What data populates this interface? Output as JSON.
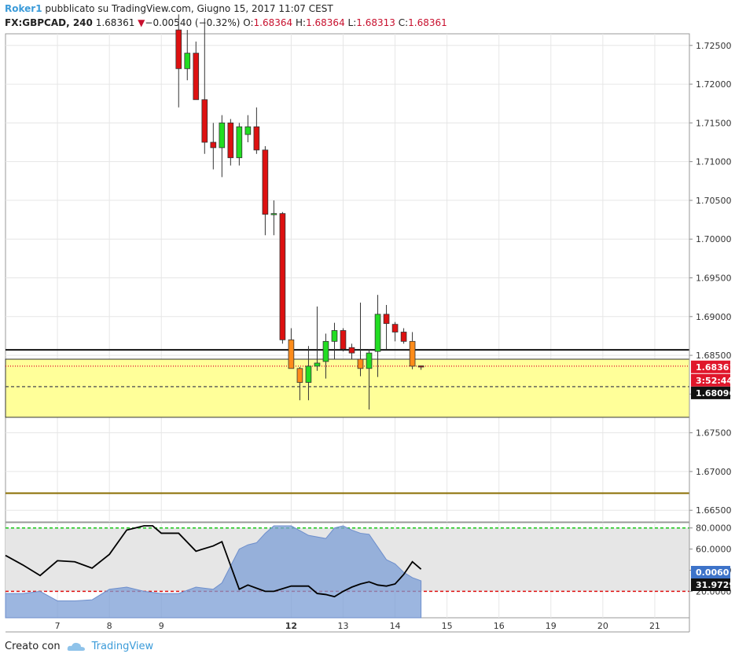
{
  "header": {
    "author": "Roker1",
    "published_text": "pubblicato su TradingView.com, Giugno 15, 2017 11:07 CEST",
    "symbol": "FX:GBPCAD, 240",
    "last_price": "1.68361",
    "change_arrow": "▼",
    "change": "−0.00540 (−0.32%)",
    "open_label": "O:",
    "open": "1.68364",
    "high_label": "H:",
    "high": "1.68364",
    "low_label": "L:",
    "low": "1.68313",
    "close_label": "C:",
    "close": "1.68361"
  },
  "footer": {
    "created_with": "Creato con",
    "brand": "TradingView"
  },
  "colors": {
    "up": "#22dd22",
    "down": "#dd1111",
    "zone_fill": "#ffff99",
    "grid": "#e6e6e6",
    "axis_text": "#333333",
    "osc_fill": "#7b9ed6",
    "osc_line": "#000000",
    "price_label_bg": "#e0162b"
  },
  "chart_data": [
    {
      "type": "candlestick",
      "title": "FX:GBPCAD, 240",
      "y_ticks": [
        "1.72500",
        "1.72000",
        "1.71500",
        "1.71000",
        "1.70500",
        "1.70000",
        "1.69500",
        "1.69000",
        "1.68500",
        "1.68000",
        "1.67500",
        "1.67000",
        "1.66500"
      ],
      "ylim": [
        1.6635,
        1.7265
      ],
      "x_tick_labels": [
        "7",
        "8",
        "9",
        "12",
        "13",
        "14",
        "15",
        "16",
        "19",
        "20",
        "21"
      ],
      "x_tick_bold": [
        "12"
      ],
      "x_tick_slots": [
        -27,
        -21,
        -15,
        0,
        6,
        12,
        18,
        24,
        30,
        36,
        42
      ],
      "slot_range": [
        -33,
        46
      ],
      "candles": [
        {
          "slot": -13,
          "o": 1.727,
          "h": 1.729,
          "l": 1.717,
          "c": 1.722
        },
        {
          "slot": -12,
          "o": 1.722,
          "h": 1.727,
          "l": 1.7205,
          "c": 1.724
        },
        {
          "slot": -11,
          "o": 1.724,
          "h": 1.7255,
          "l": 1.718,
          "c": 1.718
        },
        {
          "slot": -10,
          "o": 1.718,
          "h": 1.7285,
          "l": 1.711,
          "c": 1.7125
        },
        {
          "slot": -9,
          "o": 1.7125,
          "h": 1.715,
          "l": 1.709,
          "c": 1.7118
        },
        {
          "slot": -8,
          "o": 1.7118,
          "h": 1.716,
          "l": 1.708,
          "c": 1.715
        },
        {
          "slot": -7,
          "o": 1.715,
          "h": 1.7155,
          "l": 1.7095,
          "c": 1.7105
        },
        {
          "slot": -6,
          "o": 1.7105,
          "h": 1.715,
          "l": 1.7095,
          "c": 1.7145
        },
        {
          "slot": -5,
          "o": 1.7135,
          "h": 1.716,
          "l": 1.7125,
          "c": 1.7145
        },
        {
          "slot": -4,
          "o": 1.7145,
          "h": 1.717,
          "l": 1.711,
          "c": 1.7115
        },
        {
          "slot": -3,
          "o": 1.7115,
          "h": 1.712,
          "l": 1.7005,
          "c": 1.7032
        },
        {
          "slot": -2,
          "o": 1.7032,
          "h": 1.705,
          "l": 1.7005,
          "c": 1.7033
        },
        {
          "slot": -1,
          "o": 1.7033,
          "h": 1.7035,
          "l": 1.6865,
          "c": 1.687
        },
        {
          "slot": 0,
          "o": 1.687,
          "h": 1.6885,
          "l": 1.6833,
          "c": 1.6833
        },
        {
          "slot": 1,
          "o": 1.6833,
          "h": 1.6835,
          "l": 1.6792,
          "c": 1.6815
        },
        {
          "slot": 2,
          "o": 1.6815,
          "h": 1.6862,
          "l": 1.6792,
          "c": 1.6836
        },
        {
          "slot": 3,
          "o": 1.6836,
          "h": 1.6913,
          "l": 1.683,
          "c": 1.684
        },
        {
          "slot": 4,
          "o": 1.6842,
          "h": 1.6878,
          "l": 1.682,
          "c": 1.6868
        },
        {
          "slot": 5,
          "o": 1.6868,
          "h": 1.6892,
          "l": 1.6845,
          "c": 1.6882
        },
        {
          "slot": 6,
          "o": 1.6882,
          "h": 1.6885,
          "l": 1.6855,
          "c": 1.6858
        },
        {
          "slot": 7,
          "o": 1.686,
          "h": 1.6865,
          "l": 1.6845,
          "c": 1.6853
        },
        {
          "slot": 8,
          "o": 1.6845,
          "h": 1.6918,
          "l": 1.6823,
          "c": 1.6833
        },
        {
          "slot": 9,
          "o": 1.6833,
          "h": 1.6858,
          "l": 1.678,
          "c": 1.6853
        },
        {
          "slot": 10,
          "o": 1.6855,
          "h": 1.6928,
          "l": 1.6822,
          "c": 1.6903
        },
        {
          "slot": 11,
          "o": 1.6903,
          "h": 1.6915,
          "l": 1.6858,
          "c": 1.6891
        },
        {
          "slot": 12,
          "o": 1.689,
          "h": 1.6893,
          "l": 1.6868,
          "c": 1.688
        },
        {
          "slot": 13,
          "o": 1.688,
          "h": 1.6885,
          "l": 1.6865,
          "c": 1.6868
        },
        {
          "slot": 14,
          "o": 1.6868,
          "h": 1.688,
          "l": 1.6832,
          "c": 1.6836
        },
        {
          "slot": 15,
          "o": 1.68364,
          "h": 1.68364,
          "l": 1.68313,
          "c": 1.68361
        }
      ],
      "orange_candles": [
        0,
        1,
        8,
        14
      ],
      "levels": [
        {
          "name": "resistance-line",
          "value": 1.6857,
          "color": "#111111",
          "style": "solid"
        },
        {
          "name": "last-price-line",
          "value": 1.68361,
          "color": "#e0162b",
          "style": "dotted"
        },
        {
          "name": "mid-dashed-line",
          "value": 1.68096,
          "color": "#555555",
          "style": "dashed"
        },
        {
          "name": "support-line",
          "value": 1.6672,
          "color": "#8a6d00",
          "style": "solid"
        }
      ],
      "zone": {
        "from": 1.677,
        "to": 1.6845
      },
      "price_labels": {
        "last": "1.68361",
        "countdown": "3:52:44",
        "dashed": "1.68096"
      }
    },
    {
      "type": "area",
      "title": "Stochastic RSI",
      "y_ticks": [
        "80.0000",
        "60.0000",
        "40.0000",
        "20.0000"
      ],
      "ylim": [
        -5,
        85
      ],
      "bands": {
        "upper": 80,
        "lower": 20
      },
      "series": [
        {
          "name": "k-line",
          "color": "#000000",
          "slots": [
            -33,
            -31,
            -29,
            -27,
            -25,
            -23,
            -21,
            -19,
            -17,
            -16,
            -15,
            -13,
            -11,
            -9,
            -8,
            -6,
            -5,
            -4,
            -3,
            -2,
            0,
            2,
            3,
            4,
            5,
            6,
            7,
            8,
            9,
            10,
            11,
            12,
            13,
            14,
            15
          ],
          "values": [
            54,
            45,
            35,
            49,
            48,
            42,
            55,
            78,
            82,
            82,
            75,
            75,
            58,
            63,
            67,
            22,
            26,
            23,
            20,
            20,
            25,
            25,
            18,
            17,
            15,
            20,
            24,
            27,
            29,
            26,
            25,
            27,
            36,
            48,
            41
          ]
        },
        {
          "name": "d-area",
          "color": "#7b9ed6",
          "slots": [
            -33,
            -31,
            -29,
            -27,
            -25,
            -23,
            -21,
            -19,
            -17,
            -15,
            -13,
            -11,
            -9,
            -8,
            -6,
            -5,
            -4,
            -3,
            -2,
            0,
            2,
            4,
            5,
            6,
            7,
            8,
            9,
            10,
            11,
            12,
            13,
            14,
            15
          ],
          "values": [
            18,
            18,
            20,
            11,
            11,
            12,
            22,
            24,
            20,
            18,
            18,
            24,
            22,
            28,
            60,
            64,
            66,
            75,
            82,
            82,
            73,
            70,
            80,
            82,
            78,
            75,
            74,
            62,
            50,
            46,
            38,
            33,
            30
          ]
        }
      ],
      "price_labels": {
        "d_value": "0.0060",
        "k_value": "31.9729"
      }
    }
  ]
}
